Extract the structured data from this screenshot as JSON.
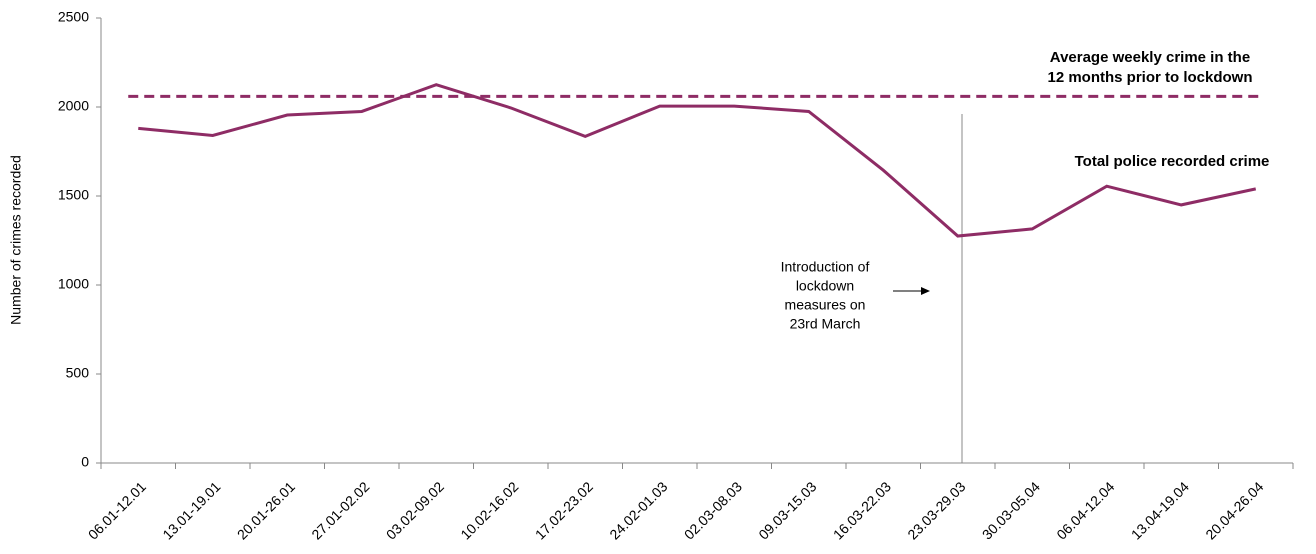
{
  "chart_data": {
    "type": "line",
    "y_axis_label": "Number of crimes recorded",
    "categories": [
      "06.01-12.01",
      "13.01-19.01",
      "20.01-26.01",
      "27.01-02.02",
      "03.02-09.02",
      "10.02-16.02",
      "17.02-23.02",
      "24.02-01.03",
      "02.03-08.03",
      "09.03-15.03",
      "16.03-22.03",
      "23.03-29.03",
      "30.03-05.04",
      "06.04-12.04",
      "13.04-19.04",
      "20.04-26.04"
    ],
    "series": [
      {
        "name": "Total police recorded crime",
        "color": "#8e2c65",
        "values": [
          1880,
          1840,
          1955,
          1975,
          2125,
          1995,
          1835,
          2005,
          2005,
          1975,
          1645,
          1275,
          1315,
          1555,
          1450,
          1540
        ]
      }
    ],
    "reference_line": {
      "value": 2060,
      "label_lines": [
        "Average weekly crime in the",
        "12 months prior to lockdown"
      ],
      "color": "#8e2c65",
      "style": "dashed"
    },
    "annotation": {
      "lines": [
        "Introduction of",
        "lockdown",
        "measures on",
        "23rd March"
      ]
    },
    "ylim": [
      0,
      2500
    ],
    "yticks": [
      0,
      500,
      1000,
      1500,
      2000,
      2500
    ],
    "grid": false
  }
}
